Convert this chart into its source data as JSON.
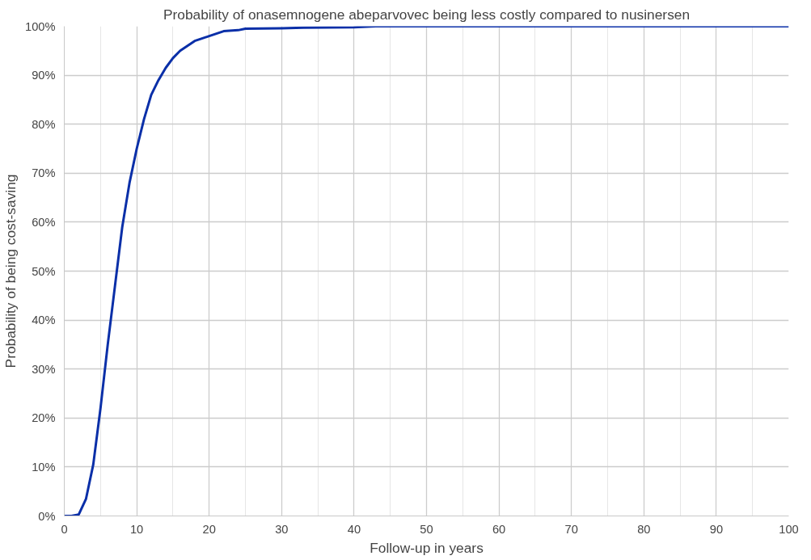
{
  "chart_data": {
    "type": "line",
    "title": "Probability of onasemnogene abeparvovec being less costly compared to nusinersen",
    "xlabel": "Follow-up in years",
    "ylabel": "Probability of being cost-saving",
    "x": [
      0,
      1,
      2,
      3,
      4,
      5,
      6,
      7,
      8,
      9,
      10,
      11,
      12,
      13,
      14,
      15,
      16,
      17,
      18,
      19,
      20,
      22,
      24,
      25,
      30,
      33,
      40,
      43,
      100
    ],
    "series": [
      {
        "color": "#0a2fa8",
        "values": [
          0,
          0,
          0.3,
          3.5,
          10.5,
          22,
          35,
          47,
          59,
          68,
          75,
          81,
          86,
          89,
          91.5,
          93.5,
          95,
          96,
          97,
          97.5,
          98,
          99,
          99.2,
          99.5,
          99.6,
          99.7,
          99.8,
          100,
          100
        ]
      }
    ],
    "xlim": [
      0,
      100
    ],
    "xticks": [
      0,
      10,
      20,
      30,
      40,
      50,
      60,
      70,
      80,
      90,
      100
    ],
    "ylim": [
      0,
      100
    ],
    "yticks": [
      {
        "value": 0,
        "label": "0%"
      },
      {
        "value": 10,
        "label": "10%"
      },
      {
        "value": 20,
        "label": "20%"
      },
      {
        "value": 30,
        "label": "30%"
      },
      {
        "value": 40,
        "label": "40%"
      },
      {
        "value": 50,
        "label": "50%"
      },
      {
        "value": 60,
        "label": "60%"
      },
      {
        "value": 70,
        "label": "70%"
      },
      {
        "value": 80,
        "label": "80%"
      },
      {
        "value": 90,
        "label": "90%"
      },
      {
        "value": 100,
        "label": "100%"
      }
    ],
    "grid": true,
    "marker": "none",
    "line_style": "solid"
  }
}
